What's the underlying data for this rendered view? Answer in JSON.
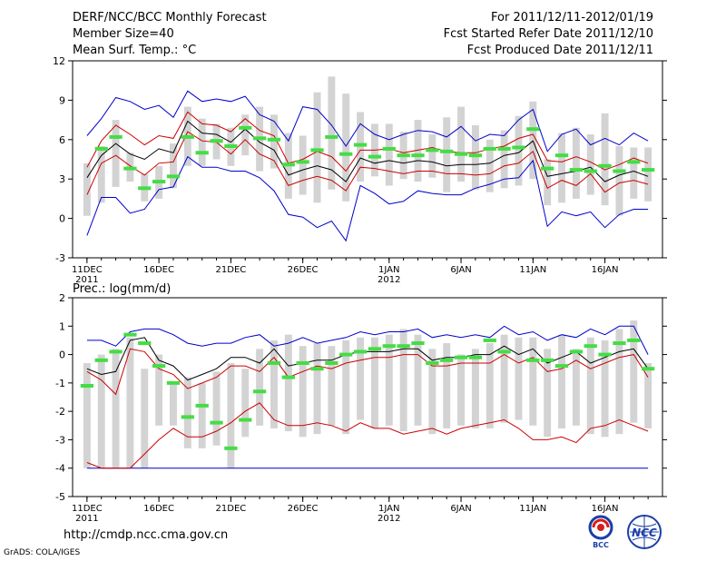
{
  "header": {
    "title": "DERF/NCC/BCC Monthly Forecast",
    "member_size": "Member Size=40",
    "variable": "Mean Surf. Temp.: °C",
    "period": "For 2011/12/11-2012/01/19",
    "started": "Fcst Started Refer Date 2011/12/10",
    "produced": "Fcst Produced Date 2011/12/11"
  },
  "footer": {
    "url": "http://cmdp.ncc.cma.gov.cn",
    "credit": "GrADS: COLA/IGES",
    "logo_bcc_text": "BCC",
    "logo_ncc_text": "NCC"
  },
  "colors": {
    "box": "#d3d3d3",
    "mean": "#000000",
    "spread": "#cc0000",
    "range": "#0000cc",
    "obs": "#44dd44"
  },
  "chart_data": [
    {
      "type": "box-line",
      "title": "Mean Surf. Temp.: °C",
      "ylim": [
        -3,
        12
      ],
      "yticks": [
        -3,
        0,
        3,
        6,
        9,
        12
      ],
      "xtick_labels": [
        {
          "day": 1,
          "label": "11DEC",
          "sub": "2011"
        },
        {
          "day": 6,
          "label": "16DEC",
          "sub": ""
        },
        {
          "day": 11,
          "label": "21DEC",
          "sub": ""
        },
        {
          "day": 16,
          "label": "26DEC",
          "sub": ""
        },
        {
          "day": 22,
          "label": "1JAN",
          "sub": "2012"
        },
        {
          "day": 27,
          "label": "6JAN",
          "sub": ""
        },
        {
          "day": 32,
          "label": "11JAN",
          "sub": ""
        },
        {
          "day": 37,
          "label": "16JAN",
          "sub": ""
        }
      ],
      "days": 40,
      "box_low": [
        0.2,
        1.2,
        2.4,
        2.8,
        1.3,
        1.5,
        2.3,
        4.0,
        4.0,
        4.5,
        4.0,
        4.8,
        3.6,
        3.8,
        1.5,
        1.8,
        1.2,
        2.2,
        1.3,
        2.8,
        3.2,
        2.5,
        3.0,
        2.8,
        3.1,
        2.0,
        2.8,
        2.2,
        2.0,
        2.3,
        2.5,
        3.0,
        1.0,
        1.2,
        1.5,
        1.8,
        1.0,
        0.2,
        1.5,
        1.3
      ],
      "box_high": [
        4.2,
        5.5,
        7.5,
        5.0,
        3.4,
        4.0,
        5.7,
        8.5,
        7.6,
        7.2,
        6.9,
        7.9,
        8.5,
        7.9,
        6.5,
        6.3,
        9.6,
        10.8,
        9.5,
        8.1,
        7.2,
        7.2,
        6.6,
        7.5,
        6.4,
        7.7,
        8.5,
        7.1,
        6.0,
        6.7,
        7.8,
        8.9,
        4.5,
        6.5,
        6.9,
        6.4,
        8.0,
        5.5,
        5.4,
        5.4
      ],
      "mean": [
        3.1,
        4.8,
        5.7,
        4.9,
        4.5,
        5.3,
        5.0,
        7.4,
        6.5,
        6.4,
        5.8,
        6.8,
        5.8,
        5.2,
        3.3,
        3.7,
        4.0,
        3.7,
        2.8,
        4.6,
        4.2,
        4.4,
        4.2,
        4.4,
        4.3,
        4.0,
        4.1,
        4.1,
        4.2,
        4.8,
        5.0,
        5.9,
        3.2,
        3.4,
        3.6,
        3.9,
        2.8,
        3.3,
        3.6,
        3.2
      ],
      "upper": [
        3.9,
        5.9,
        7.1,
        6.4,
        5.6,
        6.3,
        6.1,
        8.1,
        7.2,
        7.1,
        6.6,
        7.6,
        6.7,
        6.3,
        4.2,
        4.5,
        5.1,
        4.7,
        3.6,
        5.2,
        5.2,
        5.3,
        5.0,
        5.2,
        5.4,
        5.1,
        5.0,
        5.0,
        5.3,
        5.5,
        6.1,
        6.4,
        4.4,
        4.3,
        4.7,
        4.3,
        3.7,
        4.1,
        4.6,
        4.2
      ],
      "lower": [
        1.8,
        4.2,
        4.8,
        4.0,
        3.3,
        4.2,
        4.3,
        6.6,
        5.9,
        5.8,
        4.9,
        6.0,
        4.9,
        4.4,
        2.5,
        2.9,
        3.2,
        2.9,
        2.1,
        3.9,
        3.8,
        3.6,
        3.4,
        3.6,
        3.6,
        3.4,
        3.4,
        3.3,
        3.4,
        4.0,
        4.2,
        5.1,
        2.3,
        2.9,
        2.5,
        3.4,
        2.0,
        2.7,
        2.9,
        2.6
      ],
      "max": [
        6.3,
        7.6,
        9.2,
        8.9,
        8.3,
        8.6,
        7.7,
        9.7,
        8.9,
        9.1,
        8.9,
        9.3,
        7.9,
        7.4,
        5.9,
        8.5,
        8.3,
        7.1,
        5.5,
        7.2,
        6.4,
        6.0,
        6.4,
        6.7,
        6.6,
        6.2,
        7.0,
        5.9,
        6.4,
        6.3,
        7.5,
        8.3,
        5.1,
        6.4,
        6.8,
        5.6,
        6.1,
        5.6,
        6.5,
        5.9
      ],
      "min": [
        -1.3,
        1.6,
        1.6,
        0.4,
        0.7,
        2.2,
        2.4,
        4.7,
        3.9,
        3.9,
        3.6,
        3.6,
        3.1,
        2.1,
        0.3,
        0.1,
        -0.7,
        -0.2,
        -1.7,
        2.5,
        1.9,
        1.1,
        1.3,
        2.1,
        1.9,
        1.8,
        1.8,
        2.3,
        2.6,
        3.0,
        3.1,
        4.4,
        -0.6,
        0.5,
        0.2,
        0.5,
        -0.7,
        0.3,
        0.7,
        0.7
      ],
      "obs": [
        null,
        5.3,
        6.2,
        3.8,
        2.3,
        2.8,
        3.2,
        6.2,
        5.0,
        5.9,
        5.5,
        6.9,
        6.1,
        6.0,
        4.1,
        4.3,
        5.2,
        6.2,
        4.9,
        5.6,
        4.7,
        5.3,
        4.8,
        4.8,
        5.2,
        5.1,
        4.9,
        4.8,
        5.3,
        5.3,
        5.4,
        6.8,
        3.8,
        4.8,
        3.7,
        3.6,
        4.0,
        3.6,
        4.3,
        3.7
      ]
    },
    {
      "type": "box-line",
      "title": "Prec.: log(mm/d)",
      "ylim": [
        -5,
        2
      ],
      "yticks": [
        -5,
        -4,
        -3,
        -2,
        -1,
        0,
        1,
        2
      ],
      "xtick_labels": [
        {
          "day": 1,
          "label": "11DEC",
          "sub": "2011"
        },
        {
          "day": 6,
          "label": "16DEC",
          "sub": ""
        },
        {
          "day": 11,
          "label": "21DEC",
          "sub": ""
        },
        {
          "day": 16,
          "label": "26DEC",
          "sub": ""
        },
        {
          "day": 22,
          "label": "1JAN",
          "sub": "2012"
        },
        {
          "day": 27,
          "label": "6JAN",
          "sub": ""
        },
        {
          "day": 32,
          "label": "11JAN",
          "sub": ""
        },
        {
          "day": 37,
          "label": "16JAN",
          "sub": ""
        }
      ],
      "days": 40,
      "box_low": [
        -4.0,
        -4.0,
        -4.0,
        -4.0,
        -4.0,
        -2.5,
        -2.5,
        -3.3,
        -3.3,
        -3.2,
        -4.0,
        -2.9,
        -2.5,
        -2.6,
        -2.7,
        -2.9,
        -2.8,
        -2.5,
        -2.8,
        -2.3,
        -2.6,
        -2.5,
        -2.7,
        -2.5,
        -2.8,
        -2.6,
        -2.5,
        -2.6,
        -2.6,
        -2.4,
        -2.3,
        -2.5,
        -2.9,
        -2.6,
        -2.5,
        -2.8,
        -2.9,
        -2.8,
        -2.4,
        -2.6
      ],
      "box_high": [
        -0.3,
        0.0,
        0.2,
        0.6,
        -0.5,
        0.0,
        -1.0,
        -0.8,
        -1.0,
        -0.6,
        -0.3,
        -0.5,
        0.2,
        0.5,
        0.7,
        0.3,
        0.4,
        0.3,
        0.5,
        0.6,
        0.6,
        0.7,
        0.9,
        0.7,
        0.2,
        0.4,
        0.0,
        0.2,
        0.4,
        0.7,
        0.6,
        0.6,
        0.2,
        0.7,
        0.2,
        0.6,
        0.5,
        0.9,
        1.2,
        -0.3
      ],
      "mean": [
        -0.5,
        -0.7,
        -0.6,
        0.5,
        0.6,
        -0.2,
        -0.4,
        -0.9,
        -0.7,
        -0.5,
        -0.1,
        -0.1,
        -0.3,
        0.2,
        -0.4,
        -0.3,
        -0.2,
        -0.2,
        0.0,
        0.1,
        0.1,
        0.1,
        0.2,
        0.2,
        -0.2,
        -0.1,
        -0.1,
        0.0,
        0.0,
        0.3,
        0.0,
        0.2,
        -0.3,
        -0.1,
        0.1,
        -0.3,
        -0.1,
        0.1,
        0.2,
        -0.5
      ],
      "upper": [
        -0.6,
        -0.9,
        -1.4,
        0.2,
        0.1,
        -0.5,
        -0.7,
        -1.2,
        -1.0,
        -0.8,
        -0.4,
        -0.4,
        -0.6,
        -0.1,
        -0.8,
        -0.6,
        -0.4,
        -0.5,
        -0.3,
        -0.2,
        -0.1,
        -0.1,
        0.0,
        0.0,
        -0.4,
        -0.4,
        -0.3,
        -0.3,
        -0.3,
        0.0,
        -0.3,
        -0.1,
        -0.6,
        -0.5,
        -0.2,
        -0.5,
        -0.3,
        -0.1,
        0.0,
        -0.8
      ],
      "lower": [
        -3.8,
        -4.0,
        -4.0,
        -4.0,
        -3.5,
        -3.0,
        -2.6,
        -2.9,
        -2.9,
        -2.7,
        -2.4,
        -2.0,
        -1.7,
        -2.3,
        -2.5,
        -2.5,
        -2.4,
        -2.5,
        -2.7,
        -2.4,
        -2.6,
        -2.6,
        -2.8,
        -2.7,
        -2.6,
        -2.8,
        -2.6,
        -2.5,
        -2.4,
        -2.3,
        -2.6,
        -3.0,
        -3.0,
        -2.9,
        -3.1,
        -2.6,
        -2.5,
        -2.3,
        -2.5,
        -2.7
      ],
      "max": [
        0.5,
        0.5,
        0.3,
        0.8,
        0.9,
        0.9,
        0.7,
        0.4,
        0.3,
        0.4,
        0.4,
        0.6,
        0.7,
        0.3,
        0.4,
        0.6,
        0.4,
        0.5,
        0.6,
        0.8,
        0.7,
        0.8,
        0.8,
        0.9,
        0.6,
        0.7,
        0.6,
        0.7,
        0.6,
        1.0,
        0.7,
        0.8,
        0.5,
        0.7,
        0.6,
        0.9,
        0.7,
        1.0,
        1.0,
        0.0
      ],
      "min": [
        -4.0,
        -4.0,
        -4.0,
        -4.0,
        -4.0,
        -4.0,
        -4.0,
        -4.0,
        -4.0,
        -4.0,
        -4.0,
        -4.0,
        -4.0,
        -4.0,
        -4.0,
        -4.0,
        -4.0,
        -4.0,
        -4.0,
        -4.0,
        -4.0,
        -4.0,
        -4.0,
        -4.0,
        -4.0,
        -4.0,
        -4.0,
        -4.0,
        -4.0,
        -4.0,
        -4.0,
        -4.0,
        -4.0,
        -4.0,
        -4.0,
        -4.0,
        -4.0,
        -4.0,
        -4.0,
        -4.0
      ],
      "obs": [
        -1.1,
        -0.2,
        0.1,
        0.7,
        0.4,
        -0.4,
        -1.0,
        -2.2,
        -1.8,
        -2.4,
        -3.3,
        -2.3,
        -1.3,
        -0.3,
        -0.8,
        -0.3,
        -0.5,
        -0.3,
        0.0,
        0.1,
        0.2,
        0.3,
        0.3,
        0.4,
        -0.3,
        -0.2,
        -0.1,
        -0.1,
        0.5,
        0.1,
        null,
        -0.2,
        -0.2,
        -0.4,
        0.1,
        0.3,
        0.0,
        0.4,
        0.5,
        -0.5
      ]
    }
  ]
}
